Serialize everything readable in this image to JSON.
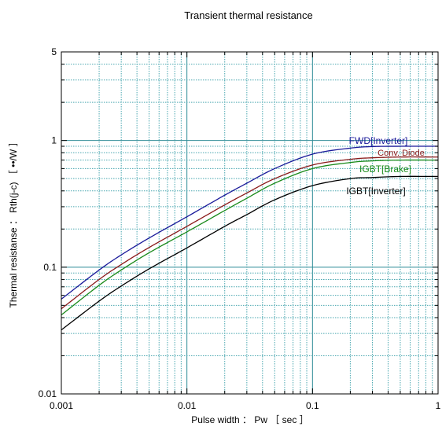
{
  "chart_data": {
    "type": "line",
    "title": "Transient thermal resistance",
    "xlabel": "Pulse width ： Pw ［ sec ］",
    "ylabel": "Thermal resistanse ： Rth(j-c) ［ ••/W ］",
    "x_scale": "log",
    "y_scale": "log",
    "xlim": [
      0.001,
      1
    ],
    "ylim": [
      0.01,
      5
    ],
    "x_ticks": [
      "0.001",
      "0.01",
      "0.1",
      "1"
    ],
    "y_ticks": [
      "0.01",
      "0.1",
      "1",
      "5"
    ],
    "grid": true,
    "series": [
      {
        "name": "FWD[Inverter]",
        "color": "#1a1a9a",
        "x": [
          0.001,
          0.002,
          0.003,
          0.005,
          0.01,
          0.02,
          0.03,
          0.05,
          0.1,
          0.2,
          0.3,
          0.5,
          1
        ],
        "values": [
          0.056,
          0.095,
          0.125,
          0.17,
          0.25,
          0.37,
          0.46,
          0.6,
          0.78,
          0.87,
          0.895,
          0.9,
          0.9
        ]
      },
      {
        "name": "Conv. Diode",
        "color": "#8b1a1a",
        "x": [
          0.001,
          0.002,
          0.003,
          0.005,
          0.01,
          0.02,
          0.03,
          0.05,
          0.1,
          0.2,
          0.3,
          0.5,
          1
        ],
        "values": [
          0.047,
          0.08,
          0.105,
          0.143,
          0.21,
          0.31,
          0.385,
          0.5,
          0.64,
          0.71,
          0.73,
          0.74,
          0.74
        ]
      },
      {
        "name": "IGBT[Brake]",
        "color": "#1a8a1a",
        "x": [
          0.001,
          0.002,
          0.003,
          0.005,
          0.01,
          0.02,
          0.03,
          0.05,
          0.1,
          0.2,
          0.3,
          0.5,
          1
        ],
        "values": [
          0.042,
          0.072,
          0.095,
          0.13,
          0.19,
          0.28,
          0.35,
          0.46,
          0.6,
          0.67,
          0.69,
          0.7,
          0.7
        ]
      },
      {
        "name": "IGBT[Inverter]",
        "color": "#000000",
        "x": [
          0.001,
          0.002,
          0.003,
          0.005,
          0.01,
          0.02,
          0.03,
          0.05,
          0.1,
          0.2,
          0.3,
          0.5,
          1
        ],
        "values": [
          0.032,
          0.054,
          0.071,
          0.097,
          0.142,
          0.21,
          0.26,
          0.34,
          0.44,
          0.5,
          0.51,
          0.52,
          0.52
        ]
      }
    ]
  }
}
